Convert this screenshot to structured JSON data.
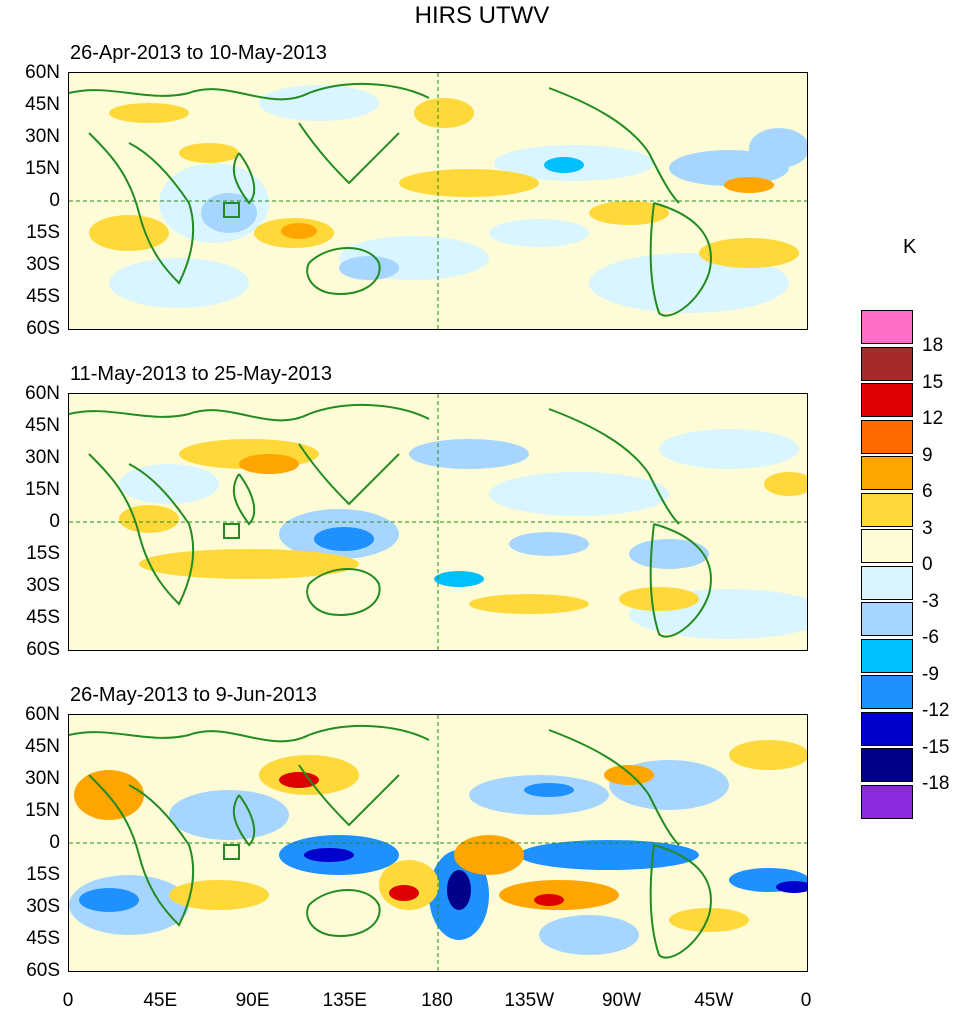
{
  "title": "HIRS UTWV",
  "panels": [
    {
      "title": "26-Apr-2013 to 10-May-2013"
    },
    {
      "title": "11-May-2013 to 25-May-2013"
    },
    {
      "title": "26-May-2013 to 9-Jun-2013"
    }
  ],
  "lat_labels": [
    "60N",
    "45N",
    "30N",
    "15N",
    "0",
    "15S",
    "30S",
    "45S",
    "60S"
  ],
  "lon_labels": [
    "0",
    "45E",
    "90E",
    "135E",
    "180",
    "135W",
    "90W",
    "45W",
    "0"
  ],
  "colorbar": {
    "unit": "K",
    "labels": [
      "18",
      "15",
      "12",
      "9",
      "6",
      "3",
      "0",
      "-3",
      "-6",
      "-9",
      "-12",
      "-15",
      "-18"
    ],
    "colors": [
      "#ff6ec7",
      "#a52a2a",
      "#dd0000",
      "#ff6a00",
      "#ffa500",
      "#ffd83a",
      "#fefcd6",
      "#d9f5ff",
      "#a6d6ff",
      "#00bfff",
      "#1e90ff",
      "#0000cd",
      "#00008b",
      "#8a2be2"
    ]
  },
  "legend_colors": {
    "land": "#228b22",
    "equator": "#228b22"
  }
}
